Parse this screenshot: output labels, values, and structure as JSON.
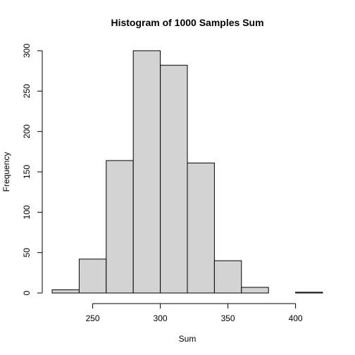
{
  "chart_data": {
    "type": "bar",
    "title": "Histogram of 1000 Samples Sum",
    "xlabel": "Sum",
    "ylabel": "Frequency",
    "bins": [
      {
        "start": 220,
        "end": 240,
        "count": 4
      },
      {
        "start": 240,
        "end": 260,
        "count": 42
      },
      {
        "start": 260,
        "end": 280,
        "count": 164
      },
      {
        "start": 280,
        "end": 300,
        "count": 300
      },
      {
        "start": 300,
        "end": 320,
        "count": 282
      },
      {
        "start": 320,
        "end": 340,
        "count": 161
      },
      {
        "start": 340,
        "end": 360,
        "count": 40
      },
      {
        "start": 360,
        "end": 380,
        "count": 7
      },
      {
        "start": 380,
        "end": 400,
        "count": 0
      },
      {
        "start": 400,
        "end": 420,
        "count": 1
      }
    ],
    "xlim": [
      220,
      420
    ],
    "ylim": [
      0,
      300
    ],
    "xticks": [
      250,
      300,
      350,
      400
    ],
    "yticks": [
      0,
      50,
      100,
      150,
      200,
      250,
      300
    ],
    "grid": false,
    "bar_color": "#D3D3D3",
    "edge_color": "#000000"
  }
}
